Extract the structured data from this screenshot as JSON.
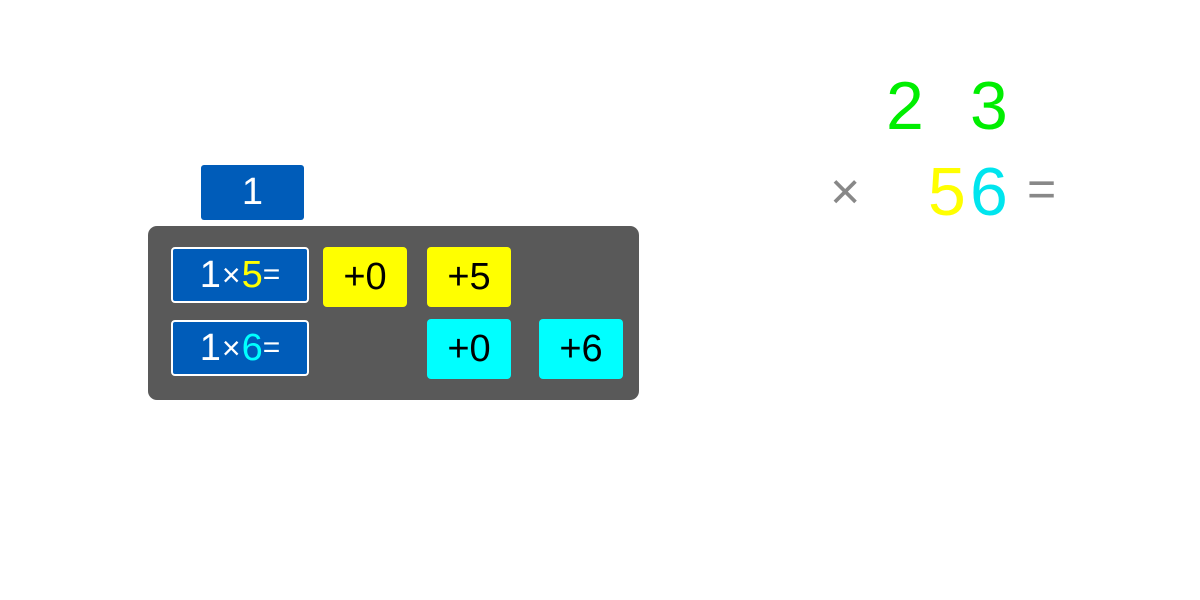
{
  "colors": {
    "blue": "#005cb9",
    "yellow": "#ffff00",
    "cyan": "#00ffff",
    "green": "#00ee00",
    "gray": "#888888",
    "panel": "#595959"
  },
  "current_digit": "1",
  "rows": [
    {
      "expr_left": "1",
      "expr_op": "×",
      "expr_digit": "5",
      "expr_eq": "=",
      "tiles": [
        "+0",
        "+5"
      ]
    },
    {
      "expr_left": "1",
      "expr_op": "×",
      "expr_digit": "6",
      "expr_eq": "=",
      "tiles": [
        "+0",
        "+6"
      ]
    }
  ],
  "problem": {
    "top_digits": [
      "2",
      "3"
    ],
    "times_sign": "×",
    "bottom_digits": [
      "5",
      "6"
    ],
    "equals_sign": "="
  }
}
